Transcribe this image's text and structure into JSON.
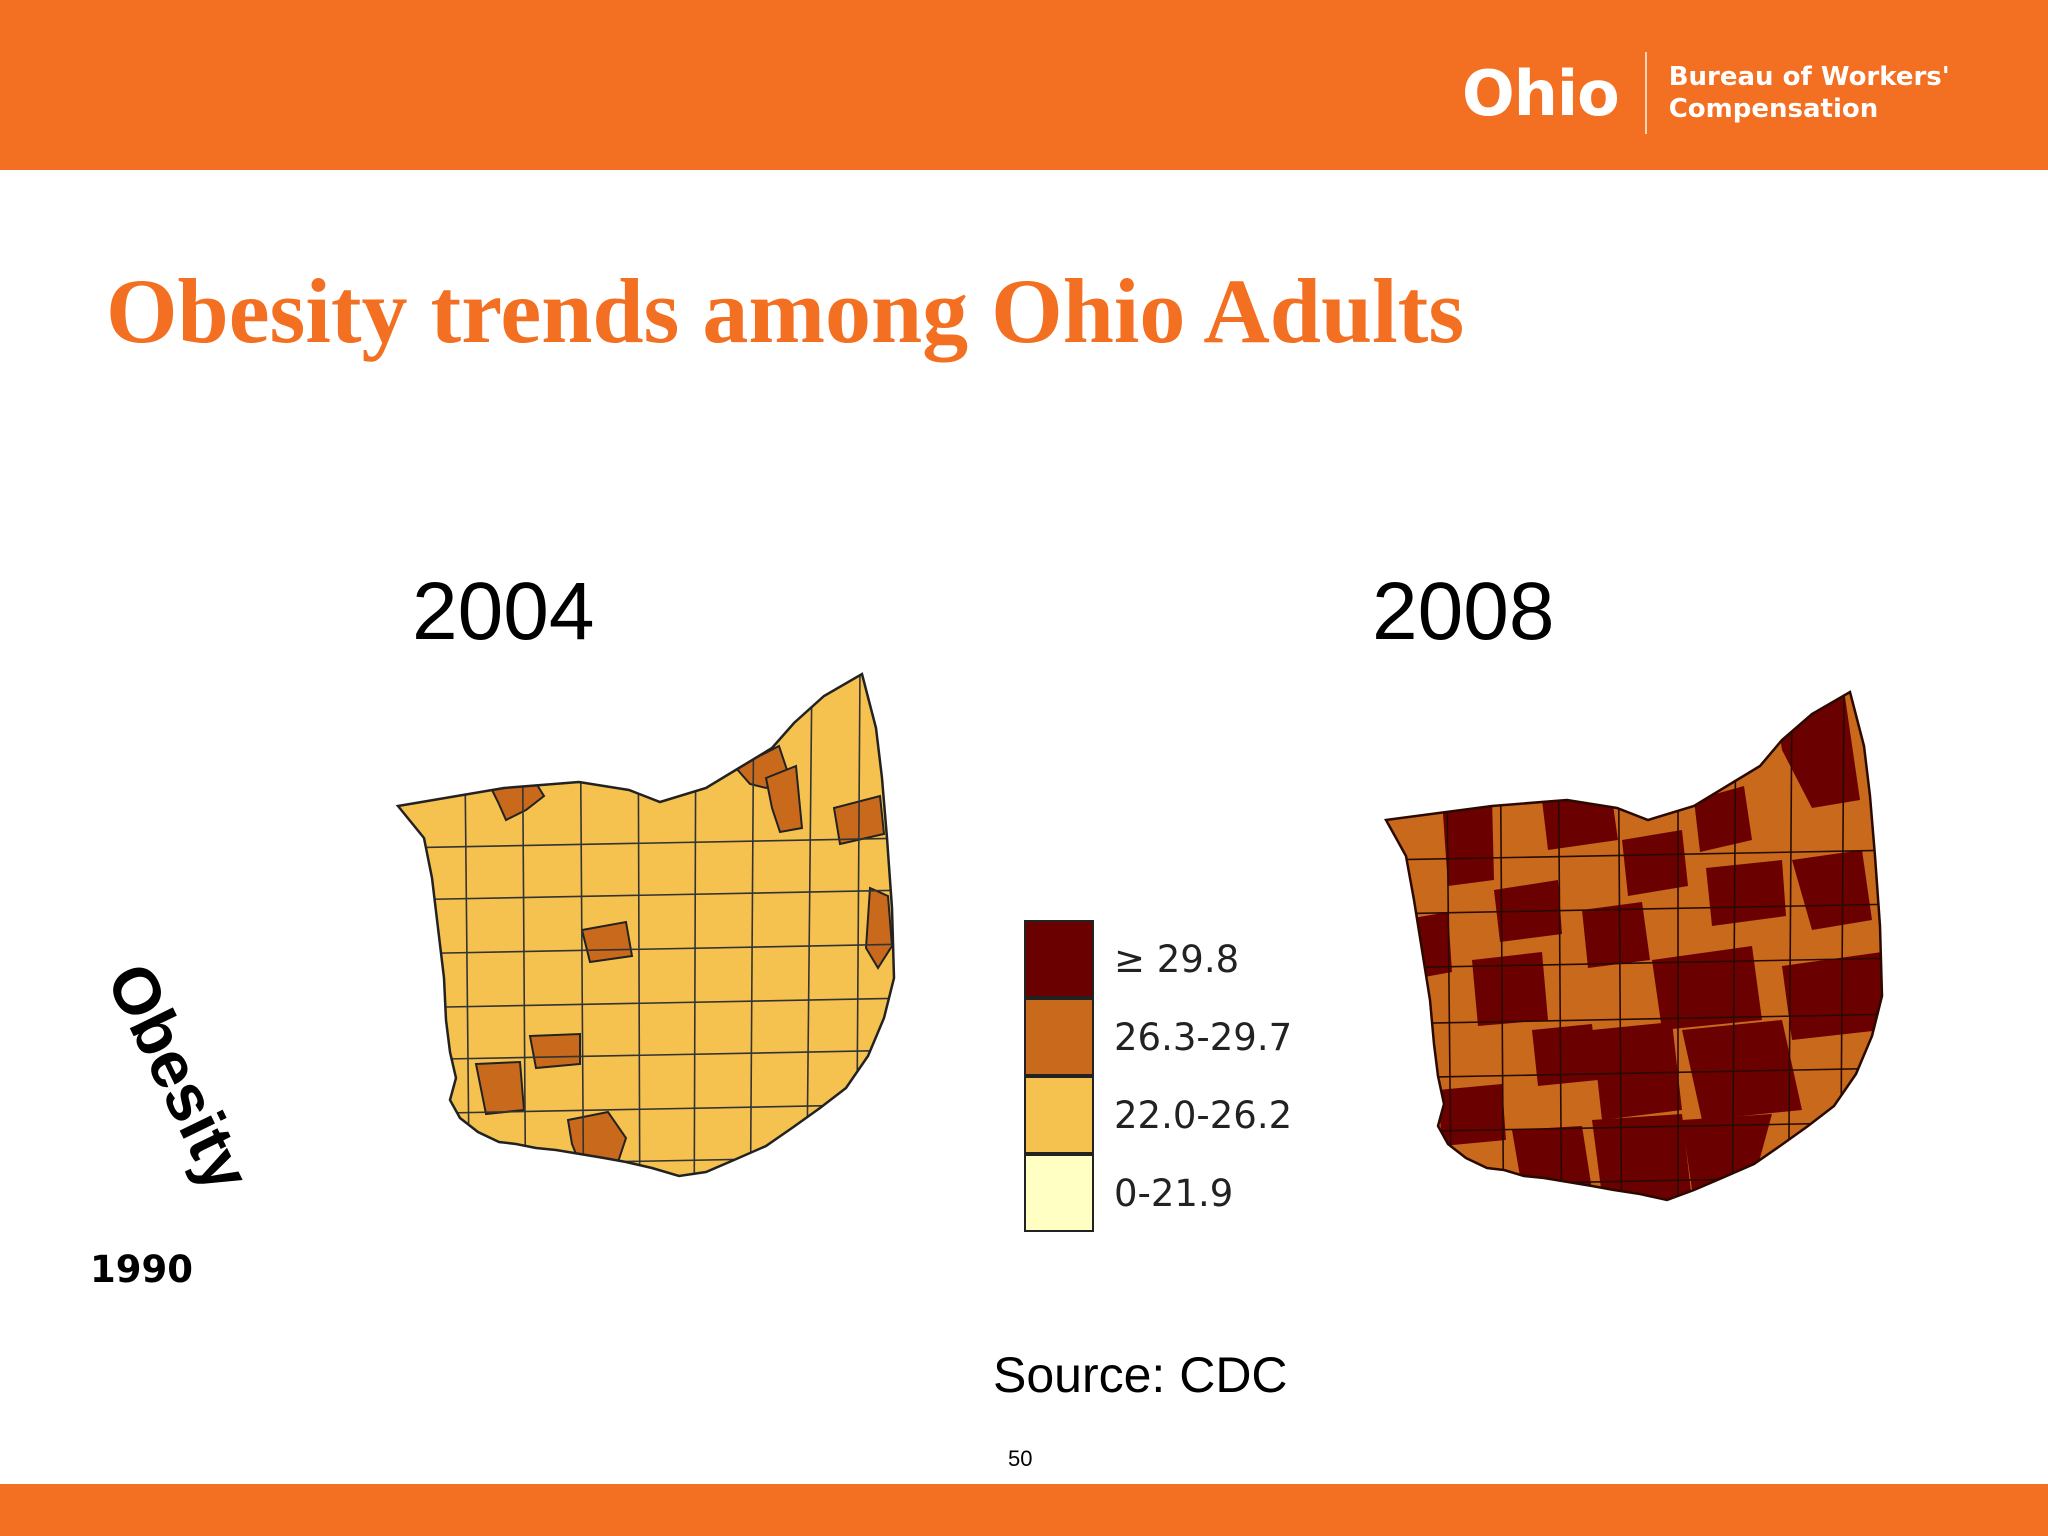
{
  "header": {
    "logo_ohio": "Ohio",
    "logo_line1": "Bureau of Workers'",
    "logo_line2": "Compensation",
    "bg_color": "#f36f21"
  },
  "slide": {
    "title": "Obesity trends among Ohio Adults",
    "side_label": "Obesity",
    "small_year": "1990",
    "source": "Source: CDC",
    "page_number": "50"
  },
  "maps": [
    {
      "year": "2004",
      "dominant_category": "22.0-26.2",
      "highlight_category": "26.3-29.7"
    },
    {
      "year": "2008",
      "dominant_category": "≥ 29.8",
      "highlight_category": "26.3-29.7"
    }
  ],
  "legend": [
    {
      "label": "≥ 29.8",
      "color": "#6b0000"
    },
    {
      "label": "26.3-29.7",
      "color": "#c8691c"
    },
    {
      "label": "22.0-26.2",
      "color": "#f6c24f"
    },
    {
      "label": "0-21.9",
      "color": "#ffffc4"
    }
  ]
}
